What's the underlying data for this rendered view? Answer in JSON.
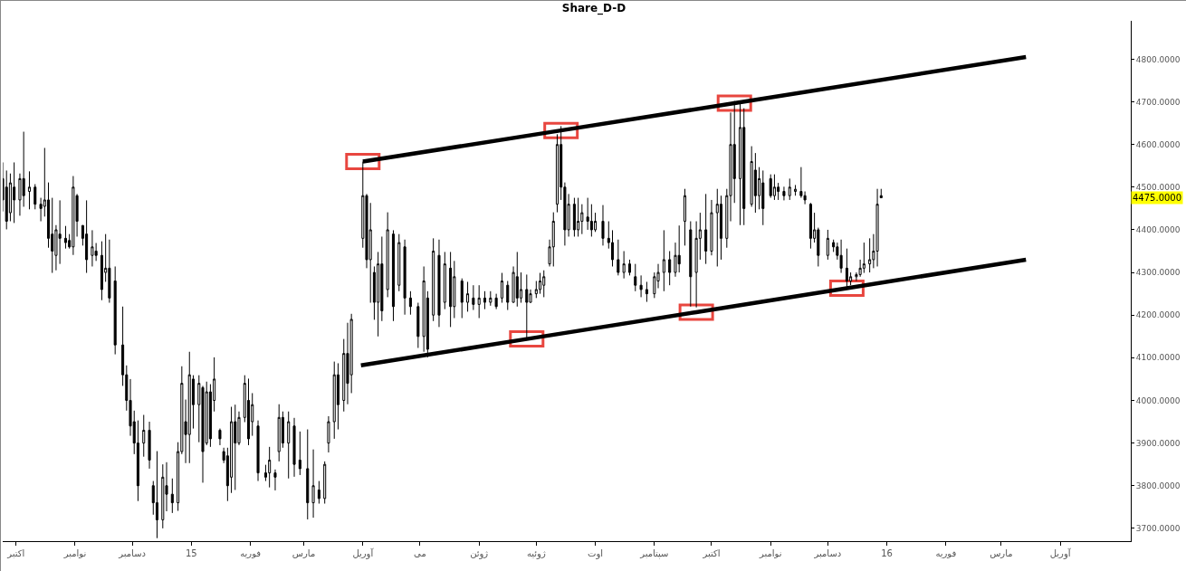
{
  "chart_data": {
    "type": "candlestick",
    "title": "Share_D-D",
    "color": "#000000",
    "x": [
      "2014-09-24",
      "2014-09-26",
      "2014-09-28",
      "2014-09-30",
      "2014-10-03",
      "2014-10-05",
      "2014-10-08",
      "2014-10-11",
      "2014-10-14",
      "2014-10-16",
      "2014-10-18",
      "2014-10-20",
      "2014-10-22",
      "2014-10-24",
      "2014-10-27",
      "2014-10-29",
      "2014-10-31",
      "2014-11-02",
      "2014-11-05",
      "2014-11-07",
      "2014-11-10",
      "2014-11-12",
      "2014-11-15",
      "2014-11-17",
      "2014-11-19",
      "2014-11-22",
      "2014-11-26",
      "2014-11-28",
      "2014-11-30",
      "2014-12-02",
      "2014-12-04",
      "2014-12-07",
      "2014-12-10",
      "2014-12-12",
      "2014-12-14",
      "2014-12-17",
      "2014-12-19",
      "2014-12-22",
      "2014-12-25",
      "2014-12-27",
      "2014-12-29",
      "2014-12-31",
      "2015-01-02",
      "2015-01-05",
      "2015-01-07",
      "2015-01-09",
      "2015-01-11",
      "2015-01-13",
      "2015-01-16",
      "2015-01-18",
      "2015-01-20",
      "2015-01-22",
      "2015-01-24",
      "2015-01-26",
      "2015-01-29",
      "2015-01-31",
      "2015-02-02",
      "2015-02-05",
      "2015-02-09",
      "2015-02-11",
      "2015-02-14",
      "2015-02-16",
      "2015-02-18",
      "2015-02-21",
      "2015-02-24",
      "2015-02-27",
      "2015-03-03",
      "2015-03-06",
      "2015-03-09",
      "2015-03-12",
      "2015-03-14",
      "2015-03-17",
      "2015-03-19",
      "2015-03-22",
      "2015-03-24",
      "2015-03-26",
      "2015-04-01",
      "2015-04-03",
      "2015-04-05",
      "2015-04-07",
      "2015-04-09",
      "2015-04-11",
      "2015-04-14",
      "2015-04-17",
      "2015-04-20",
      "2015-04-23",
      "2015-04-26",
      "2015-04-30",
      "2015-05-03",
      "2015-05-05",
      "2015-05-08",
      "2015-05-11",
      "2015-05-14",
      "2015-05-17",
      "2015-05-19",
      "2015-05-23",
      "2015-05-26",
      "2015-05-29",
      "2015-06-01",
      "2015-06-04",
      "2015-06-07",
      "2015-06-10",
      "2015-06-13",
      "2015-06-16",
      "2015-06-19",
      "2015-06-21",
      "2015-06-23",
      "2015-06-26",
      "2015-06-28",
      "2015-07-01",
      "2015-07-03",
      "2015-07-05",
      "2015-07-08",
      "2015-07-10",
      "2015-07-12",
      "2015-07-14",
      "2015-07-16",
      "2015-07-18",
      "2015-07-21",
      "2015-07-23",
      "2015-07-25",
      "2015-07-28",
      "2015-07-30",
      "2015-08-01",
      "2015-08-05",
      "2015-08-08",
      "2015-08-10",
      "2015-08-13",
      "2015-08-16",
      "2015-08-19",
      "2015-08-22",
      "2015-08-25",
      "2015-08-28",
      "2015-09-01",
      "2015-09-03",
      "2015-09-06",
      "2015-09-09",
      "2015-09-12",
      "2015-09-14",
      "2015-09-17",
      "2015-09-20",
      "2015-09-23",
      "2015-09-25",
      "2015-09-28",
      "2015-10-01",
      "2015-10-04",
      "2015-10-06",
      "2015-10-09",
      "2015-10-11",
      "2015-10-13",
      "2015-10-16",
      "2015-10-18",
      "2015-10-22",
      "2015-10-24",
      "2015-10-26",
      "2015-10-28",
      "2015-11-01",
      "2015-11-03",
      "2015-11-05",
      "2015-11-08",
      "2015-11-11",
      "2015-11-14",
      "2015-11-17",
      "2015-11-19",
      "2015-11-22",
      "2015-11-24",
      "2015-11-26",
      "2015-12-01",
      "2015-12-04",
      "2015-12-06",
      "2015-12-08",
      "2015-12-11",
      "2015-12-13",
      "2015-12-16",
      "2015-12-18",
      "2015-12-20",
      "2015-12-23",
      "2015-12-25",
      "2015-12-27",
      "2015-12-29"
    ],
    "ohlc": [
      [
        4520,
        4558,
        4443,
        4470
      ],
      [
        4500,
        4539,
        4401,
        4420
      ],
      [
        4440,
        4532,
        4420,
        4510
      ],
      [
        4500,
        4558,
        4416,
        4470
      ],
      [
        4470,
        4532,
        4433,
        4520
      ],
      [
        4520,
        4630,
        4454,
        4480
      ],
      [
        4490,
        4537,
        4448,
        4500
      ],
      [
        4500,
        4507,
        4448,
        4460
      ],
      [
        4460,
        4475,
        4420,
        4450
      ],
      [
        4455,
        4592,
        4431,
        4470
      ],
      [
        4470,
        4511,
        4358,
        4380
      ],
      [
        4390,
        4475,
        4299,
        4350
      ],
      [
        4340,
        4411,
        4305,
        4400
      ],
      [
        4390,
        4469,
        4320,
        4380
      ],
      [
        4380,
        4409,
        4356,
        4370
      ],
      [
        4375,
        4390,
        4356,
        4360
      ],
      [
        4360,
        4526,
        4341,
        4500
      ],
      [
        4480,
        4484,
        4384,
        4420
      ],
      [
        4410,
        4411,
        4363,
        4380
      ],
      [
        4390,
        4469,
        4299,
        4330
      ],
      [
        4340,
        4399,
        4314,
        4360
      ],
      [
        4350,
        4369,
        4327,
        4340
      ],
      [
        4340,
        4373,
        4235,
        4260
      ],
      [
        4300,
        4390,
        4278,
        4310
      ],
      [
        4310,
        4377,
        4229,
        4240
      ],
      [
        4280,
        4314,
        4108,
        4130
      ],
      [
        4130,
        4220,
        4034,
        4060
      ],
      [
        4060,
        4082,
        3976,
        4000
      ],
      [
        4000,
        4050,
        3917,
        3940
      ],
      [
        3950,
        3976,
        3874,
        3900
      ],
      [
        3900,
        3953,
        3764,
        3800
      ],
      [
        3900,
        3966,
        3868,
        3930
      ],
      [
        3930,
        3950,
        3840,
        3860
      ],
      [
        3800,
        3811,
        3732,
        3760
      ],
      [
        3760,
        3881,
        3677,
        3720
      ],
      [
        3720,
        3850,
        3700,
        3820
      ],
      [
        3800,
        3855,
        3740,
        3780
      ],
      [
        3780,
        3817,
        3736,
        3760
      ],
      [
        3760,
        3902,
        3741,
        3880
      ],
      [
        3880,
        4080,
        3874,
        4040
      ],
      [
        3950,
        4002,
        3853,
        3920
      ],
      [
        3920,
        4114,
        3853,
        4060
      ],
      [
        4050,
        4059,
        3934,
        3990
      ],
      [
        3990,
        4059,
        3902,
        4040
      ],
      [
        4030,
        4034,
        3807,
        3880
      ],
      [
        3900,
        4044,
        3895,
        4020
      ],
      [
        4020,
        4038,
        3891,
        3910
      ],
      [
        4000,
        4101,
        3974,
        4050
      ],
      [
        3930,
        3934,
        3895,
        3910
      ],
      [
        3880,
        3889,
        3853,
        3860
      ],
      [
        3870,
        3889,
        3764,
        3800
      ],
      [
        3820,
        3985,
        3783,
        3950
      ],
      [
        3950,
        3990,
        3790,
        3900
      ],
      [
        3900,
        3974,
        3895,
        3960
      ],
      [
        3960,
        4059,
        3949,
        4040
      ],
      [
        4000,
        4051,
        3895,
        3910
      ],
      [
        3950,
        4017,
        3917,
        3990
      ],
      [
        3940,
        3953,
        3811,
        3830
      ],
      [
        3830,
        3849,
        3811,
        3820
      ],
      [
        3830,
        3891,
        3796,
        3860
      ],
      [
        3830,
        3838,
        3789,
        3820
      ],
      [
        3880,
        3991,
        3857,
        3960
      ],
      [
        3960,
        3974,
        3889,
        3900
      ],
      [
        3900,
        3974,
        3817,
        3950
      ],
      [
        3940,
        3959,
        3821,
        3850
      ],
      [
        3860,
        3927,
        3825,
        3840
      ],
      [
        3840,
        3932,
        3721,
        3760
      ],
      [
        3760,
        3885,
        3725,
        3800
      ],
      [
        3790,
        3811,
        3758,
        3770
      ],
      [
        3770,
        3857,
        3758,
        3850
      ],
      [
        3900,
        3963,
        3878,
        3950
      ],
      [
        3950,
        4091,
        3910,
        4060
      ],
      [
        4060,
        4087,
        3932,
        3990
      ],
      [
        4000,
        4144,
        3974,
        4110
      ],
      [
        4110,
        4182,
        3991,
        4040
      ],
      [
        4060,
        4203,
        4017,
        4190
      ],
      [
        4380,
        4560,
        4358,
        4480
      ],
      [
        4480,
        4484,
        4310,
        4330
      ],
      [
        4330,
        4463,
        4229,
        4400
      ],
      [
        4300,
        4314,
        4189,
        4230
      ],
      [
        4230,
        4348,
        4150,
        4320
      ],
      [
        4320,
        4384,
        4186,
        4210
      ],
      [
        4260,
        4441,
        4242,
        4400
      ],
      [
        4390,
        4399,
        4186,
        4220
      ],
      [
        4270,
        4390,
        4256,
        4370
      ],
      [
        4360,
        4377,
        4201,
        4240
      ],
      [
        4240,
        4256,
        4201,
        4220
      ],
      [
        4220,
        4229,
        4123,
        4150
      ],
      [
        4150,
        4314,
        4114,
        4280
      ],
      [
        4240,
        4256,
        4101,
        4120
      ],
      [
        4200,
        4380,
        4186,
        4350
      ],
      [
        4340,
        4377,
        4172,
        4200
      ],
      [
        4230,
        4348,
        4214,
        4320
      ],
      [
        4310,
        4348,
        4172,
        4220
      ],
      [
        4220,
        4327,
        4193,
        4290
      ],
      [
        4280,
        4286,
        4193,
        4230
      ],
      [
        4230,
        4278,
        4208,
        4250
      ],
      [
        4240,
        4270,
        4212,
        4225
      ],
      [
        4225,
        4270,
        4193,
        4240
      ],
      [
        4240,
        4256,
        4214,
        4230
      ],
      [
        4230,
        4256,
        4222,
        4240
      ],
      [
        4240,
        4250,
        4214,
        4220
      ],
      [
        4240,
        4299,
        4229,
        4280
      ],
      [
        4270,
        4280,
        4212,
        4230
      ],
      [
        4230,
        4314,
        4229,
        4300
      ],
      [
        4290,
        4348,
        4220,
        4240
      ],
      [
        4240,
        4300,
        4229,
        4260
      ],
      [
        4260,
        4295,
        4144,
        4230
      ],
      [
        4230,
        4260,
        4229,
        4250
      ],
      [
        4250,
        4280,
        4240,
        4260
      ],
      [
        4260,
        4299,
        4250,
        4280
      ],
      [
        4270,
        4305,
        4242,
        4290
      ],
      [
        4320,
        4377,
        4314,
        4360
      ],
      [
        4360,
        4441,
        4314,
        4420
      ],
      [
        4460,
        4624,
        4441,
        4600
      ],
      [
        4600,
        4643,
        4470,
        4500
      ],
      [
        4500,
        4511,
        4363,
        4400
      ],
      [
        4400,
        4484,
        4384,
        4460
      ],
      [
        4460,
        4475,
        4384,
        4400
      ],
      [
        4400,
        4475,
        4384,
        4420
      ],
      [
        4420,
        4460,
        4390,
        4440
      ],
      [
        4430,
        4475,
        4400,
        4420
      ],
      [
        4420,
        4460,
        4384,
        4400
      ],
      [
        4400,
        4440,
        4395,
        4420
      ],
      [
        4420,
        4458,
        4363,
        4380
      ],
      [
        4380,
        4420,
        4356,
        4370
      ],
      [
        4370,
        4399,
        4314,
        4330
      ],
      [
        4330,
        4377,
        4293,
        4300
      ],
      [
        4300,
        4350,
        4286,
        4320
      ],
      [
        4320,
        4330,
        4293,
        4300
      ],
      [
        4290,
        4320,
        4256,
        4270
      ],
      [
        4270,
        4293,
        4242,
        4260
      ],
      [
        4260,
        4278,
        4231,
        4250
      ],
      [
        4250,
        4300,
        4240,
        4290
      ],
      [
        4280,
        4320,
        4263,
        4300
      ],
      [
        4300,
        4399,
        4256,
        4330
      ],
      [
        4330,
        4350,
        4270,
        4300
      ],
      [
        4300,
        4370,
        4290,
        4340
      ],
      [
        4340,
        4410,
        4300,
        4320
      ],
      [
        4420,
        4496,
        4363,
        4480
      ],
      [
        4400,
        4420,
        4220,
        4290
      ],
      [
        4300,
        4420,
        4218,
        4380
      ],
      [
        4380,
        4440,
        4330,
        4400
      ],
      [
        4400,
        4484,
        4320,
        4350
      ],
      [
        4350,
        4470,
        4340,
        4440
      ],
      [
        4440,
        4496,
        4314,
        4460
      ],
      [
        4460,
        4480,
        4330,
        4380
      ],
      [
        4380,
        4496,
        4358,
        4480
      ],
      [
        4480,
        4675,
        4420,
        4600
      ],
      [
        4600,
        4702,
        4463,
        4520
      ],
      [
        4520,
        4697,
        4411,
        4640
      ],
      [
        4640,
        4685,
        4411,
        4450
      ],
      [
        4460,
        4596,
        4454,
        4560
      ],
      [
        4540,
        4580,
        4440,
        4480
      ],
      [
        4480,
        4547,
        4448,
        4520
      ],
      [
        4510,
        4539,
        4411,
        4450
      ],
      [
        4520,
        4530,
        4475,
        4480
      ],
      [
        4480,
        4530,
        4470,
        4500
      ],
      [
        4500,
        4510,
        4470,
        4490
      ],
      [
        4490,
        4501,
        4469,
        4480
      ],
      [
        4480,
        4520,
        4470,
        4500
      ],
      [
        4490,
        4505,
        4480,
        4495
      ],
      [
        4490,
        4547,
        4475,
        4480
      ],
      [
        4480,
        4490,
        4460,
        4470
      ],
      [
        4460,
        4463,
        4356,
        4380
      ],
      [
        4380,
        4440,
        4370,
        4400
      ],
      [
        4400,
        4405,
        4314,
        4340
      ],
      [
        4340,
        4400,
        4330,
        4380
      ],
      [
        4370,
        4377,
        4348,
        4360
      ],
      [
        4360,
        4370,
        4330,
        4340
      ],
      [
        4340,
        4377,
        4299,
        4310
      ],
      [
        4310,
        4356,
        4263,
        4280
      ],
      [
        4280,
        4300,
        4270,
        4290
      ],
      [
        4290,
        4300,
        4280,
        4295
      ],
      [
        4295,
        4330,
        4290,
        4310
      ],
      [
        4310,
        4370,
        4299,
        4320
      ],
      [
        4320,
        4380,
        4300,
        4330
      ],
      [
        4330,
        4390,
        4310,
        4350
      ],
      [
        4350,
        4496,
        4314,
        4460
      ],
      [
        4480,
        4496,
        4475,
        4475
      ]
    ],
    "series": [
      {
        "type": "line",
        "color": "#000000",
        "x": [
          "2015-04-01",
          "2015-07-14",
          "2015-10-13",
          "2016-03-14"
        ],
        "values": [
          4560,
          4633,
          4697,
          4805
        ]
      },
      {
        "type": "line",
        "color": "#000000",
        "x": [
          "2015-03-31",
          "2015-06-26",
          "2015-09-23",
          "2015-12-11",
          "2016-03-14"
        ],
        "values": [
          4082,
          4144,
          4207,
          4263,
          4330
        ]
      }
    ],
    "annotations": [
      "4475.0000"
    ],
    "xlim": [
      "2014-09-24",
      "2016-05-08"
    ],
    "xticks": [
      {
        "value": "2014-10-01",
        "label": "اکتبر"
      },
      {
        "value": "2014-11-01",
        "label": "نوامبر"
      },
      {
        "value": "2014-12-01",
        "label": "دسامبر"
      },
      {
        "value": "2015-01-01",
        "label": "15"
      },
      {
        "value": "2015-02-01",
        "label": "فوریه"
      },
      {
        "value": "2015-03-01",
        "label": "مارس"
      },
      {
        "value": "2015-04-01",
        "label": "آوریل"
      },
      {
        "value": "2015-05-01",
        "label": "می"
      },
      {
        "value": "2015-06-01",
        "label": "ژوئن"
      },
      {
        "value": "2015-07-01",
        "label": "ژوئیه"
      },
      {
        "value": "2015-08-01",
        "label": "اوت"
      },
      {
        "value": "2015-09-01",
        "label": "سپتامبر"
      },
      {
        "value": "2015-10-01",
        "label": "اکتبر"
      },
      {
        "value": "2015-11-01",
        "label": "نوامبر"
      },
      {
        "value": "2015-12-01",
        "label": "دسامبر"
      },
      {
        "value": "2016-01-01",
        "label": "16"
      },
      {
        "value": "2016-02-01",
        "label": "فوریه"
      },
      {
        "value": "2016-03-01",
        "label": "مارس"
      },
      {
        "value": "2016-04-01",
        "label": "آوریل"
      }
    ],
    "ylim": [
      3670,
      4890
    ],
    "yticks": [
      {
        "value": 3700,
        "label": "3700.0000"
      },
      {
        "value": 3800,
        "label": "3800.0000"
      },
      {
        "value": 3900,
        "label": "3900.0000"
      },
      {
        "value": 4000,
        "label": "4000.0000"
      },
      {
        "value": 4100,
        "label": "4100.0000"
      },
      {
        "value": 4200,
        "label": "4200.0000"
      },
      {
        "value": 4300,
        "label": "4300.0000"
      },
      {
        "value": 4400,
        "label": "4400.0000"
      },
      {
        "value": 4500,
        "label": "4500.0000"
      },
      {
        "value": 4600,
        "label": "4600.0000"
      },
      {
        "value": 4700,
        "label": "4700.0000"
      },
      {
        "value": 4800,
        "label": "4800.0000"
      }
    ],
    "grid": false
  }
}
